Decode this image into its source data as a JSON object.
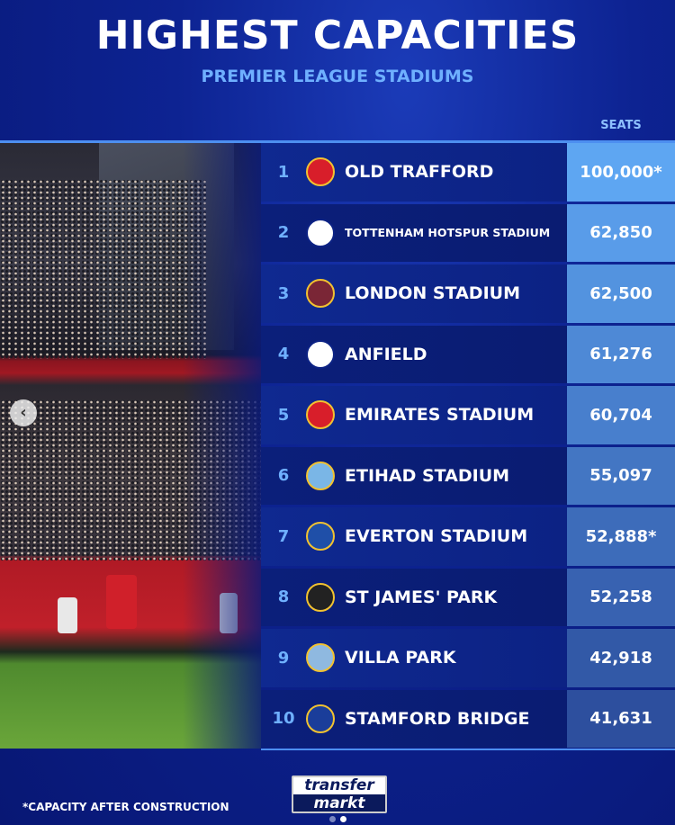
{
  "header": {
    "title": "HIGHEST CAPACITIES",
    "subtitle": "PREMIER LEAGUE STADIUMS"
  },
  "table": {
    "seats_header": "SEATS",
    "rows": [
      {
        "rank": "1",
        "stadium": "OLD TRAFFORD",
        "seats": "100,000*",
        "badge": "manchester-united-crest",
        "badge_color": "#d81e2a"
      },
      {
        "rank": "2",
        "stadium": "TOTTENHAM HOTSPUR STADIUM",
        "seats": "62,850",
        "badge": "tottenham-cockerel-crest",
        "badge_color": "#ffffff"
      },
      {
        "rank": "3",
        "stadium": "LONDON STADIUM",
        "seats": "62,500",
        "badge": "west-ham-crest",
        "badge_color": "#7a2636"
      },
      {
        "rank": "4",
        "stadium": "ANFIELD",
        "seats": "61,276",
        "badge": "liverpool-liverbird-crest",
        "badge_color": "#ffffff"
      },
      {
        "rank": "5",
        "stadium": "EMIRATES STADIUM",
        "seats": "60,704",
        "badge": "arsenal-crest",
        "badge_color": "#d81e2a"
      },
      {
        "rank": "6",
        "stadium": "ETIHAD STADIUM",
        "seats": "55,097",
        "badge": "manchester-city-crest",
        "badge_color": "#7ab6e6"
      },
      {
        "rank": "7",
        "stadium": "EVERTON STADIUM",
        "seats": "52,888*",
        "badge": "everton-crest",
        "badge_color": "#1f4fa8"
      },
      {
        "rank": "8",
        "stadium": "ST JAMES' PARK",
        "seats": "52,258",
        "badge": "newcastle-crest",
        "badge_color": "#222222"
      },
      {
        "rank": "9",
        "stadium": "VILLA PARK",
        "seats": "42,918",
        "badge": "aston-villa-crest",
        "badge_color": "#8fb9e0"
      },
      {
        "rank": "10",
        "stadium": "STAMFORD BRIDGE",
        "seats": "41,631",
        "badge": "chelsea-crest",
        "badge_color": "#1a3d9a"
      }
    ]
  },
  "footer": {
    "footnote": "*CAPACITY AFTER CONSTRUCTION",
    "logo_line1": "transfer",
    "logo_line2": "markt"
  },
  "carousel": {
    "page": 2,
    "total": 2
  }
}
